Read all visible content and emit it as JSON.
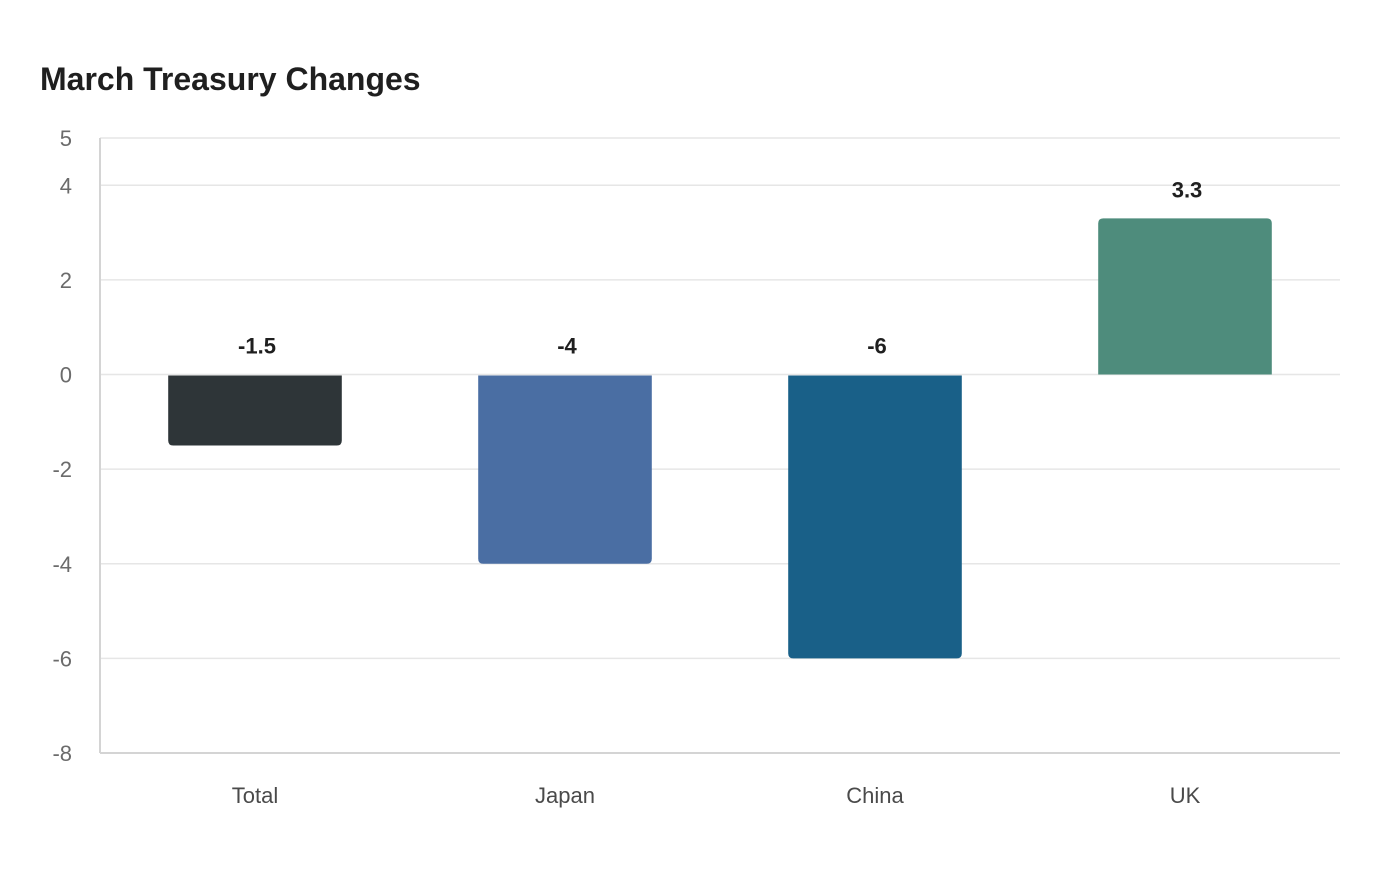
{
  "chart_data": {
    "type": "bar",
    "title": "March Treasury Changes",
    "xlabel": "",
    "ylabel": "",
    "categories": [
      "Total",
      "Japan",
      "China",
      "UK"
    ],
    "values": [
      -1.5,
      -4,
      -6,
      3.3
    ],
    "value_labels": [
      "-1.5",
      "-4",
      "-6",
      "3.3"
    ],
    "colors": [
      "#2e3538",
      "#4a6ea3",
      "#196088",
      "#4e8c7c"
    ],
    "ylim": [
      -8,
      5
    ],
    "yticks": [
      5,
      4,
      2,
      0,
      -2,
      -4,
      -6,
      -8
    ],
    "grid": true,
    "legend": "none"
  }
}
